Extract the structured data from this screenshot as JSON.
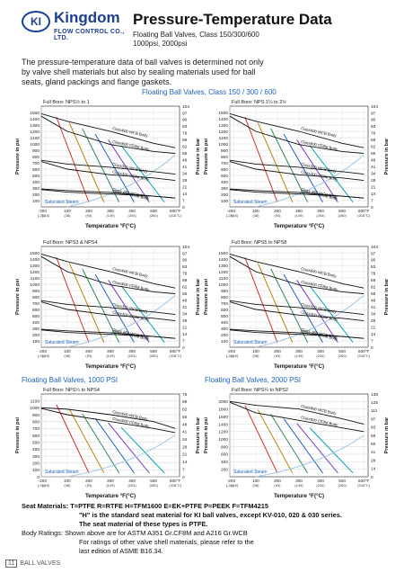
{
  "header": {
    "logo_mark": "KI",
    "brand": "Kingdom",
    "brand_sub": "FLOW CONTROL CO., LTD.",
    "title": "Pressure-Temperature Data",
    "subtitle1": "Floating Ball Valves, Class 150/300/600",
    "subtitle2": "1000psi, 2000psi"
  },
  "intro": "The pressure-temperature data of ball valves is determined not only by valve shell materials but also by sealing materials used for ball seats, gland packings and flange gaskets.",
  "sections": {
    "class": "Floating Ball Valves, Class 150 / 300 / 600",
    "psi1000": "Floating Ball Valves, 1000 PSI",
    "psi2000": "Floating Ball Valves, 2000 PSI"
  },
  "axis_labels": {
    "y_left": "Pressure in psi",
    "y_right": "Pressure in bar",
    "x": "Temperature °F(°C)",
    "full_bore": "Full Bore:",
    "x_ticks_f": [
      "-20",
      "0",
      "100",
      "200",
      "300",
      "400",
      "500",
      "600°F"
    ],
    "x_ticks_c": [
      "(-29)",
      "(-18)",
      "(38)",
      "(93)",
      "(149)",
      "(204)",
      "(260)",
      "(316°C)"
    ],
    "saturated": "Saturated Steam"
  },
  "chart_data": [
    {
      "type": "line",
      "full_bore": "NPS½ to 1",
      "y_psi_ticks": [
        1500,
        1400,
        1300,
        1200,
        1100,
        1000,
        900,
        800,
        700,
        600,
        500,
        400,
        300,
        200,
        100
      ],
      "y_bar_ticks": [
        104,
        97,
        90,
        83,
        76,
        69,
        62,
        55,
        48,
        41,
        34,
        28,
        21,
        14,
        7,
        0
      ],
      "series": [
        {
          "name": "Class600 WCB Body",
          "x": [
            -20,
            100,
            300,
            500,
            600
          ],
          "y": [
            1480,
            1360,
            1200,
            1010,
            940
          ]
        },
        {
          "name": "Class600 CF8M Body",
          "x": [
            -20,
            100,
            300,
            500,
            600
          ],
          "y": [
            1440,
            1200,
            990,
            880,
            850
          ]
        },
        {
          "name": "Class300 WCB Body",
          "x": [
            -20,
            100,
            300,
            500,
            600
          ],
          "y": [
            740,
            680,
            630,
            560,
            520
          ]
        },
        {
          "name": "Class300 CF8M Body",
          "x": [
            -20,
            100,
            300,
            500,
            600
          ],
          "y": [
            720,
            600,
            510,
            460,
            420
          ]
        },
        {
          "name": "Class 150 WCB Body",
          "x": [
            -20,
            100,
            300,
            500,
            600
          ],
          "y": [
            285,
            260,
            230,
            170,
            140
          ]
        },
        {
          "name": "Class150 CF8M Body",
          "x": [
            -20,
            100,
            300,
            500,
            600
          ],
          "y": [
            275,
            235,
            205,
            170,
            140
          ]
        }
      ]
    },
    {
      "type": "line",
      "full_bore": "NPS 1¼ to 2½",
      "y_psi_ticks": [
        1500,
        1400,
        1300,
        1200,
        1100,
        1000,
        900,
        800,
        700,
        600,
        500,
        400,
        300,
        200,
        100
      ],
      "y_bar_ticks": [
        104,
        97,
        90,
        83,
        76,
        69,
        62,
        55,
        48,
        41,
        34,
        28,
        21,
        14,
        7,
        0
      ],
      "series": [
        {
          "name": "Class600 WCB Body",
          "x": [
            -20,
            100,
            300,
            500,
            600
          ],
          "y": [
            1480,
            1360,
            1200,
            1010,
            940
          ]
        },
        {
          "name": "Class600 CF8M Body",
          "x": [
            -20,
            100,
            300,
            500,
            600
          ],
          "y": [
            1440,
            1200,
            990,
            880,
            850
          ]
        },
        {
          "name": "Class300 WCB Body",
          "x": [
            -20,
            100,
            300,
            500,
            600
          ],
          "y": [
            740,
            680,
            630,
            560,
            520
          ]
        },
        {
          "name": "Class300 CF8M Body",
          "x": [
            -20,
            100,
            300,
            500,
            600
          ],
          "y": [
            720,
            600,
            510,
            460,
            420
          ]
        },
        {
          "name": "Class 150 WCB Body",
          "x": [
            -20,
            100,
            300,
            500,
            600
          ],
          "y": [
            285,
            260,
            230,
            170,
            140
          ]
        },
        {
          "name": "Class150 CF8M Body",
          "x": [
            -20,
            100,
            300,
            500,
            600
          ],
          "y": [
            275,
            235,
            205,
            170,
            140
          ]
        }
      ]
    },
    {
      "type": "line",
      "full_bore": "NPS3 & NPS4",
      "y_psi_ticks": [
        1500,
        1400,
        1300,
        1200,
        1100,
        1000,
        900,
        800,
        700,
        600,
        500,
        400,
        300,
        200,
        100
      ],
      "y_bar_ticks": [
        104,
        97,
        90,
        83,
        76,
        69,
        62,
        55,
        48,
        41,
        34,
        28,
        21,
        14,
        7,
        0
      ],
      "series": [
        {
          "name": "Class600 WCB Body",
          "x": [
            -20,
            100,
            300,
            500,
            600
          ],
          "y": [
            1480,
            1360,
            1200,
            1010,
            940
          ]
        },
        {
          "name": "Class600 CF8M Body",
          "x": [
            -20,
            100,
            300,
            500,
            600
          ],
          "y": [
            1440,
            1200,
            990,
            880,
            850
          ]
        },
        {
          "name": "Class300 WCB Body",
          "x": [
            -20,
            100,
            300,
            500,
            600
          ],
          "y": [
            740,
            680,
            630,
            560,
            520
          ]
        },
        {
          "name": "Class300 CF8M Body",
          "x": [
            -20,
            100,
            300,
            500,
            600
          ],
          "y": [
            720,
            600,
            510,
            460,
            420
          ]
        },
        {
          "name": "Class 150 WCB Body",
          "x": [
            -20,
            100,
            300,
            500,
            600
          ],
          "y": [
            285,
            260,
            230,
            170,
            140
          ]
        },
        {
          "name": "Class150 CF8M Body",
          "x": [
            -20,
            100,
            300,
            500,
            600
          ],
          "y": [
            275,
            235,
            205,
            170,
            140
          ]
        }
      ]
    },
    {
      "type": "line",
      "full_bore": "NPS5 to NPS8",
      "y_psi_ticks": [
        1500,
        1400,
        1300,
        1200,
        1100,
        1000,
        900,
        800,
        700,
        600,
        500,
        400,
        300,
        200,
        100
      ],
      "y_bar_ticks": [
        104,
        97,
        90,
        83,
        76,
        69,
        62,
        55,
        48,
        41,
        34,
        28,
        21,
        14,
        7,
        0
      ],
      "series": [
        {
          "name": "Class600 WCB Body",
          "x": [
            -20,
            100,
            300,
            500,
            600
          ],
          "y": [
            1480,
            1360,
            1200,
            1010,
            940
          ]
        },
        {
          "name": "Class600 CF8M Body",
          "x": [
            -20,
            100,
            300,
            500,
            600
          ],
          "y": [
            1440,
            1200,
            990,
            880,
            850
          ]
        },
        {
          "name": "Class300 WCB Body",
          "x": [
            -20,
            100,
            300,
            500,
            600
          ],
          "y": [
            740,
            680,
            630,
            560,
            520
          ]
        },
        {
          "name": "Class300 CF8M Body",
          "x": [
            -20,
            100,
            300,
            500,
            600
          ],
          "y": [
            720,
            600,
            510,
            460,
            420
          ]
        },
        {
          "name": "Class 150 WCB Body",
          "x": [
            -20,
            100,
            300,
            500,
            600
          ],
          "y": [
            285,
            260,
            230,
            170,
            140
          ]
        },
        {
          "name": "Class150 CF8M Body",
          "x": [
            -20,
            100,
            300,
            500,
            600
          ],
          "y": [
            275,
            235,
            205,
            170,
            140
          ]
        }
      ]
    },
    {
      "type": "line",
      "full_bore": "NPS¼ to NPS4",
      "y_psi_ticks": [
        1100,
        1000,
        900,
        800,
        700,
        600,
        500,
        400,
        300,
        200,
        100,
        0
      ],
      "y_bar_ticks": [
        76,
        69,
        62,
        55,
        48,
        41,
        34,
        28,
        21,
        14,
        7,
        0
      ],
      "series": [
        {
          "name": "Class600 WCB Body",
          "x": [
            -20,
            100,
            300,
            500,
            600
          ],
          "y": [
            1000,
            980,
            900,
            800,
            700
          ]
        },
        {
          "name": "Class600 CF8M Body",
          "x": [
            -20,
            100,
            300,
            500,
            600
          ],
          "y": [
            990,
            900,
            800,
            700,
            640
          ]
        }
      ]
    },
    {
      "type": "line",
      "full_bore": "NPS¼ to NPS2",
      "y_psi_ticks": [
        2000,
        1800,
        1600,
        1400,
        1200,
        1000,
        800,
        600,
        400,
        200
      ],
      "y_bar_ticks": [
        138,
        125,
        111,
        97,
        83,
        69,
        55,
        41,
        28,
        14,
        0
      ],
      "series": [
        {
          "name": "Class900 WCB Body",
          "x": [
            -20,
            100,
            300,
            500,
            600
          ],
          "y": [
            2000,
            1900,
            1800,
            1540,
            1400
          ]
        },
        {
          "name": "Class900 CF8M Body",
          "x": [
            -20,
            100,
            300,
            500,
            600
          ],
          "y": [
            1980,
            1700,
            1500,
            1300,
            1200
          ]
        }
      ]
    }
  ],
  "footer": {
    "seat_label": "Seat Materials:",
    "seat_line1": "T=PTFE  R=RTFE  H=TFM1600  E=EK+PTFE  P=PEEK  F=TFM4215",
    "seat_line2": "\"H\" is the standard seat material for KI ball valves, except KV-010, 020 & 030 series.",
    "seat_line3": "The seat material of these types is PTFE.",
    "body_label": "Body Ratings:",
    "body_line1": "Shown above are for ASTM A351 Gr.CF8M and A216 Gr.WCB",
    "body_line2": "For ratings of other valve shell materials, please refer to the",
    "body_line3": "last edition of ASME B16.34.",
    "page_num": "11",
    "page_label": "BALL VALVES"
  },
  "colors": {
    "brand": "#1d3f8f",
    "section": "#1e62c0",
    "grid": "#cfcfcf",
    "seat_T": "#d22b2b",
    "seat_R": "#b8860b",
    "seat_H": "#2e8b57",
    "seat_E": "#1e62c0",
    "seat_P": "#7a3cc2",
    "seat_F": "#00a0b0"
  }
}
